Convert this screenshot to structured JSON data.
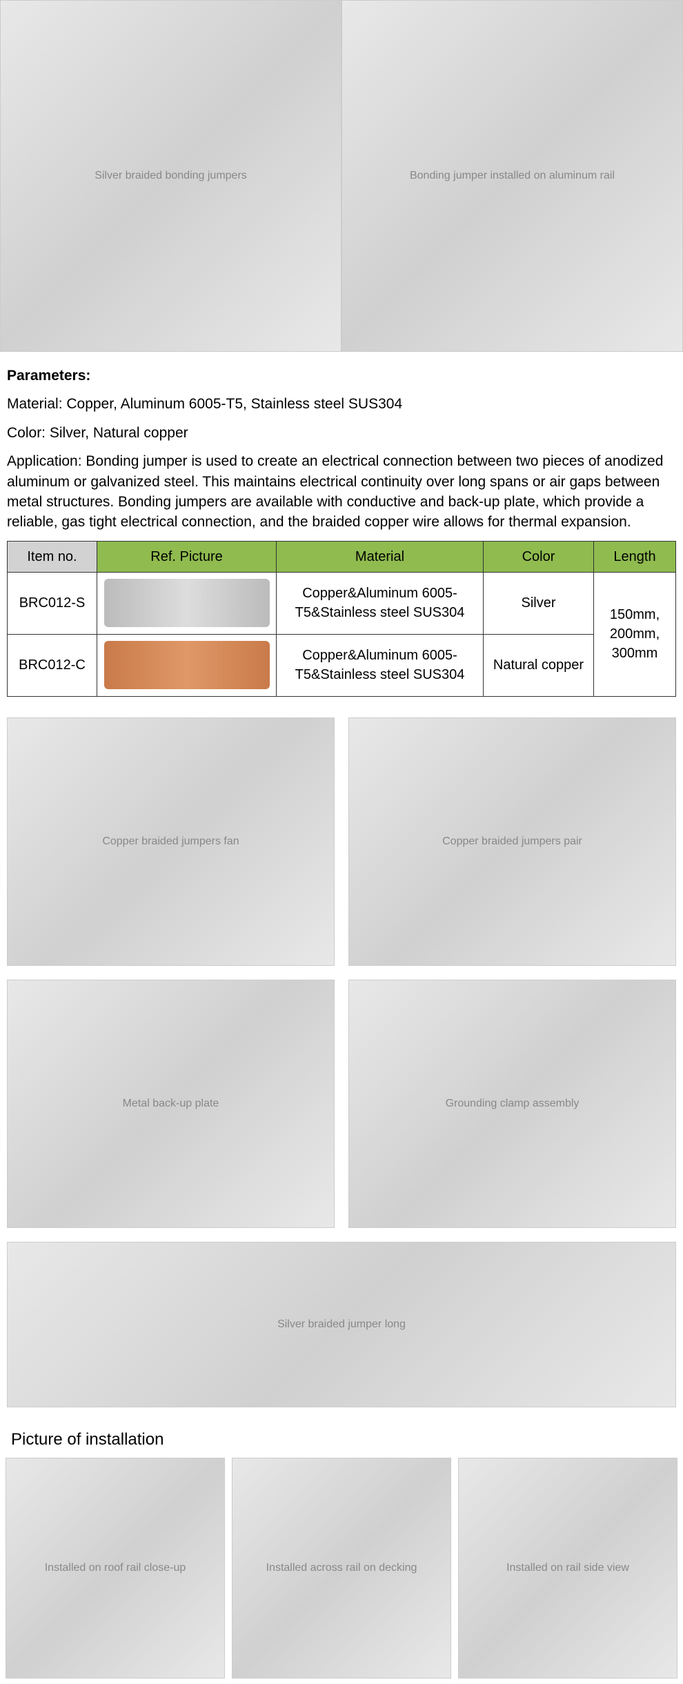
{
  "hero": {
    "left_alt": "Silver braided bonding jumpers",
    "right_alt": "Bonding jumper installed on aluminum rail"
  },
  "parameters": {
    "title": "Parameters:",
    "material_label": "Material: Copper, Aluminum 6005-T5, Stainless steel SUS304",
    "color_label": "Color: Silver, Natural copper",
    "application": "Application: Bonding jumper is used to create an electrical connection between two pieces of anodized aluminum or galvanized steel. This maintains electrical continuity over long spans or air gaps between metal structures. Bonding jumpers are available with conductive and back-up plate, which provide a reliable, gas tight electrical connection, and the braided copper wire allows for thermal expansion."
  },
  "table": {
    "headers": {
      "item": "Item no.",
      "picture": "Ref. Picture",
      "material": "Material",
      "color": "Color",
      "length": "Length"
    },
    "header_colors": {
      "item_bg": "#d2d2d2",
      "other_bg": "#8fbb4f"
    },
    "rows": [
      {
        "item": "BRC012-S",
        "material": "Copper&Aluminum 6005-T5&Stainless steel SUS304",
        "color": "Silver",
        "img_style": "silver"
      },
      {
        "item": "BRC012-C",
        "material": "Copper&Aluminum 6005-T5&Stainless steel SUS304",
        "color": "Natural copper",
        "img_style": "copper"
      }
    ],
    "length_merged": "150mm, 200mm, 300mm"
  },
  "gallery": {
    "img1": "Copper braided jumpers fan",
    "img2": "Copper braided jumpers pair",
    "img3": "Metal back-up plate",
    "img4": "Grounding clamp assembly",
    "img5": "Silver braided jumper long"
  },
  "installation": {
    "title": "Picture of installation",
    "img1": "Installed on roof rail close-up",
    "img2": "Installed across rail on decking",
    "img3": "Installed on rail side view"
  }
}
